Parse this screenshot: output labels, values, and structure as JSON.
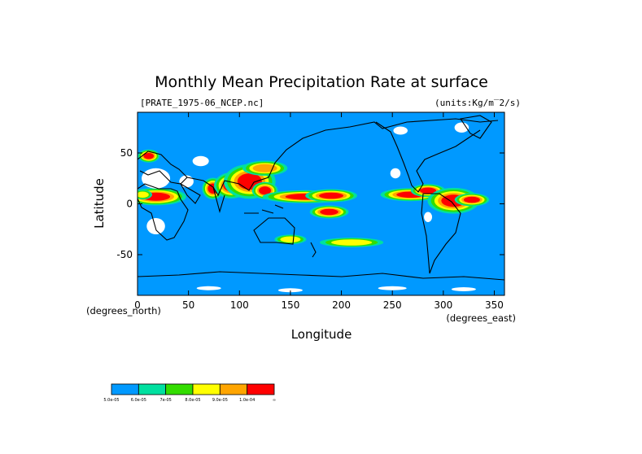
{
  "chart_data": {
    "type": "heatmap",
    "title": "Monthly Mean Precipitation Rate at surface",
    "source_label": "[PRATE_1975-06_NCEP.nc]",
    "units_label": "(units:Kg/m^2/s)",
    "units_display": "(units:Kg/m‾2/s)",
    "xlabel": "Longitude",
    "ylabel": "Latitude",
    "x_unit_note": "(degrees_east)",
    "y_unit_note": "(degrees_north)",
    "xlim": [
      0,
      360
    ],
    "ylim": [
      -90,
      90
    ],
    "x_ticks": [
      0,
      50,
      100,
      150,
      200,
      250,
      300,
      350
    ],
    "y_ticks": [
      50,
      0,
      -50
    ],
    "colorbar": {
      "colors": [
        "#0099ff",
        "#00e0a0",
        "#33dd00",
        "#ffff00",
        "#ffa500",
        "#ff0000"
      ],
      "labels": [
        "5.0e-05",
        "6.0e-05",
        "7e-05",
        "8.0e-05",
        "9.0e-05",
        "1.0e-04",
        "∞"
      ]
    },
    "background_color": "#0099ff",
    "missing_color": "#ffffff",
    "regions": [
      {
        "name": "sub-saharan-africa",
        "level": 5,
        "cx": 18,
        "cy": 7,
        "rx": 14,
        "ry": 4
      },
      {
        "name": "west-africa",
        "level": 3,
        "cx": 5,
        "cy": 9,
        "rx": 6,
        "ry": 3
      },
      {
        "name": "india-west",
        "level": 5,
        "cx": 74,
        "cy": 15,
        "rx": 5,
        "ry": 5
      },
      {
        "name": "bay-of-bengal",
        "level": 5,
        "cx": 92,
        "cy": 18,
        "rx": 8,
        "ry": 6
      },
      {
        "name": "south-china",
        "level": 5,
        "cx": 110,
        "cy": 22,
        "rx": 12,
        "ry": 8
      },
      {
        "name": "philippines",
        "level": 5,
        "cx": 125,
        "cy": 13,
        "rx": 6,
        "ry": 4
      },
      {
        "name": "mei-yu-front",
        "level": 4,
        "cx": 125,
        "cy": 35,
        "rx": 12,
        "ry": 4
      },
      {
        "name": "warm-pool",
        "level": 5,
        "cx": 165,
        "cy": 7,
        "rx": 20,
        "ry": 3
      },
      {
        "name": "itcz-central-pacific",
        "level": 5,
        "cx": 190,
        "cy": 8,
        "rx": 12,
        "ry": 3
      },
      {
        "name": "spcz",
        "level": 5,
        "cx": 188,
        "cy": -8,
        "rx": 9,
        "ry": 3
      },
      {
        "name": "east-pacific-itcz",
        "level": 5,
        "cx": 268,
        "cy": 9,
        "rx": 14,
        "ry": 3
      },
      {
        "name": "caribbean",
        "level": 5,
        "cx": 285,
        "cy": 13,
        "rx": 8,
        "ry": 3
      },
      {
        "name": "amazon",
        "level": 5,
        "cx": 310,
        "cy": 3,
        "rx": 12,
        "ry": 6
      },
      {
        "name": "mid-atlantic",
        "level": 5,
        "cx": 328,
        "cy": 4,
        "rx": 8,
        "ry": 3
      },
      {
        "name": "north-atlantic-storm",
        "level": 5,
        "cx": 11,
        "cy": 47,
        "rx": 5,
        "ry": 3
      },
      {
        "name": "southern-ocean-track",
        "level": 3,
        "cx": 210,
        "cy": -38,
        "rx": 20,
        "ry": 3
      },
      {
        "name": "south-of-australia",
        "level": 3,
        "cx": 150,
        "cy": -35,
        "rx": 10,
        "ry": 3
      }
    ],
    "missing_regions": [
      {
        "name": "sahara",
        "cx": 18,
        "cy": 25,
        "rx": 14,
        "ry": 10
      },
      {
        "name": "arabia",
        "cx": 48,
        "cy": 22,
        "rx": 7,
        "ry": 6
      },
      {
        "name": "southern-africa",
        "cx": 18,
        "cy": -22,
        "rx": 9,
        "ry": 8
      },
      {
        "name": "central-asia",
        "cx": 62,
        "cy": 42,
        "rx": 8,
        "ry": 5
      },
      {
        "name": "north-canada",
        "cx": 258,
        "cy": 72,
        "rx": 7,
        "ry": 4
      },
      {
        "name": "greenland",
        "cx": 318,
        "cy": 75,
        "rx": 7,
        "ry": 5
      },
      {
        "name": "mexico",
        "cx": 253,
        "cy": 30,
        "rx": 5,
        "ry": 5
      },
      {
        "name": "peru",
        "cx": 285,
        "cy": -13,
        "rx": 4,
        "ry": 5
      },
      {
        "name": "antarctic-coast-1",
        "cx": 70,
        "cy": -83,
        "rx": 12,
        "ry": 2
      },
      {
        "name": "antarctic-coast-2",
        "cx": 150,
        "cy": -85,
        "rx": 12,
        "ry": 2
      },
      {
        "name": "antarctic-coast-3",
        "cx": 250,
        "cy": -83,
        "rx": 14,
        "ry": 2
      },
      {
        "name": "antarctic-coast-4",
        "cx": 320,
        "cy": -84,
        "rx": 12,
        "ry": 2
      }
    ]
  }
}
